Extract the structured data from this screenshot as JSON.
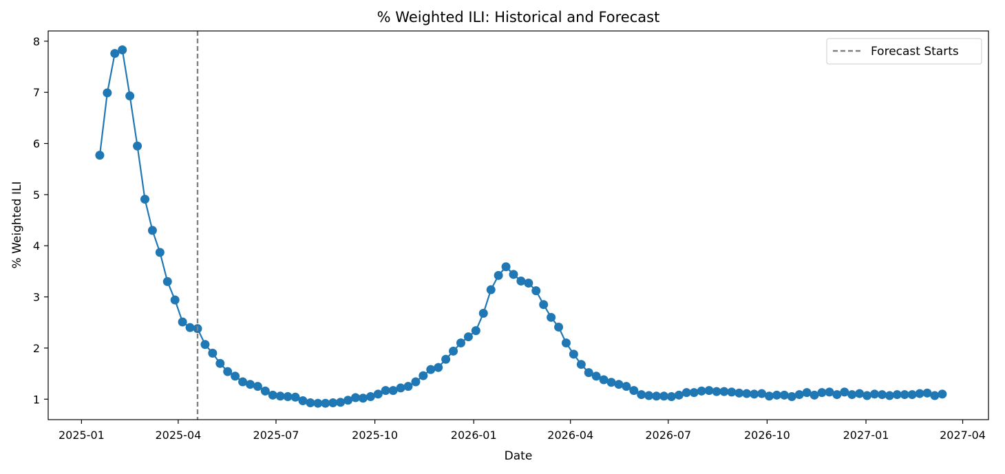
{
  "chart_data": {
    "type": "line",
    "title": "% Weighted ILI: Historical and Forecast",
    "xlabel": "Date",
    "ylabel": "% Weighted ILI",
    "grid": false,
    "legend": {
      "placement": "top-right",
      "entries": [
        "Forecast Starts"
      ]
    },
    "xlim": [
      "2024-12-01",
      "2027-04-25"
    ],
    "ylim": [
      0.6,
      8.2
    ],
    "x_ticks": [
      "2025-01",
      "2025-04",
      "2025-07",
      "2025-10",
      "2026-01",
      "2026-04",
      "2026-07",
      "2026-10",
      "2027-01",
      "2027-04"
    ],
    "y_ticks": [
      1,
      2,
      3,
      4,
      5,
      6,
      7,
      8
    ],
    "forecast_start": "2025-04-19",
    "colors": {
      "series": "#1f77b4",
      "forecast_line": "#808080"
    },
    "series": [
      {
        "x": [
          "2025-01-18",
          "2025-01-25",
          "2025-02-01",
          "2025-02-08",
          "2025-02-15",
          "2025-02-22",
          "2025-03-01",
          "2025-03-08",
          "2025-03-15",
          "2025-03-22",
          "2025-03-29",
          "2025-04-05",
          "2025-04-12",
          "2025-04-19",
          "2025-04-26",
          "2025-05-03",
          "2025-05-10",
          "2025-05-17",
          "2025-05-24",
          "2025-05-31",
          "2025-06-07",
          "2025-06-14",
          "2025-06-21",
          "2025-06-28",
          "2025-07-05",
          "2025-07-12",
          "2025-07-19",
          "2025-07-26",
          "2025-08-02",
          "2025-08-09",
          "2025-08-16",
          "2025-08-23",
          "2025-08-30",
          "2025-09-06",
          "2025-09-13",
          "2025-09-20",
          "2025-09-27",
          "2025-10-04",
          "2025-10-11",
          "2025-10-18",
          "2025-10-25",
          "2025-11-01",
          "2025-11-08",
          "2025-11-15",
          "2025-11-22",
          "2025-11-29",
          "2025-12-06",
          "2025-12-13",
          "2025-12-20",
          "2025-12-27",
          "2026-01-03",
          "2026-01-10",
          "2026-01-17",
          "2026-01-24",
          "2026-01-31",
          "2026-02-07",
          "2026-02-14",
          "2026-02-21",
          "2026-02-28",
          "2026-03-07",
          "2026-03-14",
          "2026-03-21",
          "2026-03-28",
          "2026-04-04",
          "2026-04-11",
          "2026-04-18",
          "2026-04-25",
          "2026-05-02",
          "2026-05-09",
          "2026-05-16",
          "2026-05-23",
          "2026-05-30",
          "2026-06-06",
          "2026-06-13",
          "2026-06-20",
          "2026-06-27",
          "2026-07-04",
          "2026-07-11",
          "2026-07-18",
          "2026-07-25",
          "2026-08-01",
          "2026-08-08",
          "2026-08-15",
          "2026-08-22",
          "2026-08-29",
          "2026-09-05",
          "2026-09-12",
          "2026-09-19",
          "2026-09-26",
          "2026-10-03",
          "2026-10-10",
          "2026-10-17",
          "2026-10-24",
          "2026-10-31",
          "2026-11-07",
          "2026-11-14",
          "2026-11-21",
          "2026-11-28",
          "2026-12-05",
          "2026-12-12",
          "2026-12-19",
          "2026-12-26",
          "2027-01-02",
          "2027-01-09",
          "2027-01-16",
          "2027-01-23",
          "2027-01-30",
          "2027-02-06",
          "2027-02-13",
          "2027-02-20",
          "2027-02-27",
          "2027-03-06",
          "2027-03-13"
        ],
        "values": [
          5.77,
          6.99,
          7.76,
          7.83,
          6.93,
          5.95,
          4.91,
          4.3,
          3.87,
          3.3,
          2.94,
          2.51,
          2.4,
          2.38,
          2.07,
          1.9,
          1.7,
          1.54,
          1.45,
          1.34,
          1.29,
          1.25,
          1.16,
          1.08,
          1.06,
          1.05,
          1.04,
          0.97,
          0.93,
          0.92,
          0.92,
          0.93,
          0.94,
          0.98,
          1.03,
          1.02,
          1.05,
          1.1,
          1.17,
          1.17,
          1.22,
          1.25,
          1.34,
          1.46,
          1.58,
          1.62,
          1.78,
          1.94,
          2.1,
          2.22,
          2.34,
          2.68,
          3.14,
          3.42,
          3.59,
          3.44,
          3.31,
          3.27,
          3.12,
          2.85,
          2.6,
          2.41,
          2.1,
          1.88,
          1.68,
          1.52,
          1.45,
          1.38,
          1.33,
          1.29,
          1.25,
          1.17,
          1.09,
          1.07,
          1.06,
          1.06,
          1.05,
          1.08,
          1.13,
          1.13,
          1.16,
          1.17,
          1.15,
          1.15,
          1.14,
          1.12,
          1.11,
          1.1,
          1.11,
          1.06,
          1.08,
          1.08,
          1.05,
          1.09,
          1.13,
          1.08,
          1.13,
          1.14,
          1.09,
          1.14,
          1.09,
          1.11,
          1.07,
          1.1,
          1.09,
          1.07,
          1.09,
          1.09,
          1.09,
          1.11,
          1.12,
          1.07,
          1.1
        ]
      }
    ]
  }
}
